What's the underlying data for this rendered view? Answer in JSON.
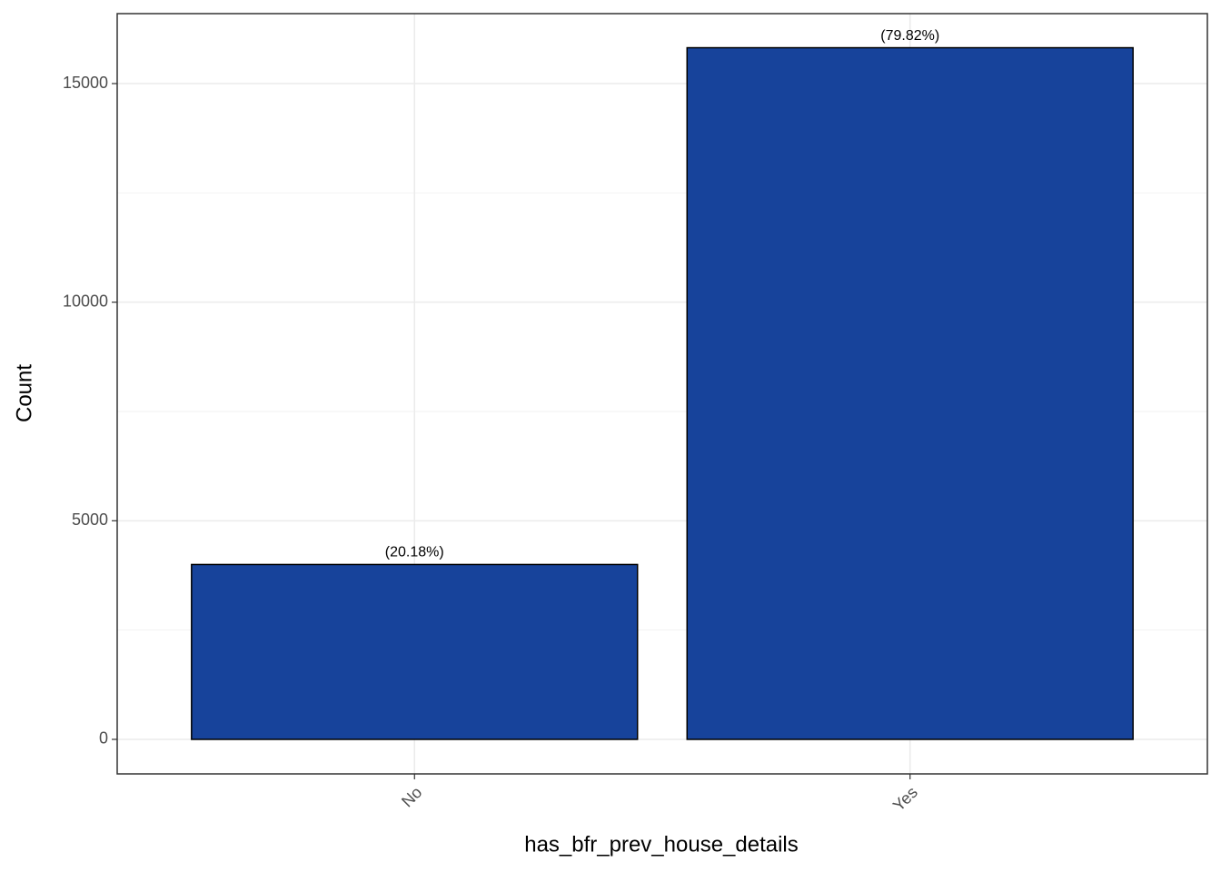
{
  "chart_data": {
    "type": "bar",
    "x_label": "has_bfr_prev_house_details",
    "y_label": "Count",
    "categories": [
      "No",
      "Yes"
    ],
    "values": [
      4000,
      15820
    ],
    "annotations": [
      "(20.18%)",
      "(79.82%)"
    ],
    "color": "#17439b",
    "ylim": [
      -790,
      16600
    ],
    "yticks": [
      0,
      5000,
      10000,
      15000
    ],
    "minor_yticks": [
      2500,
      7500,
      12500
    ],
    "grid": true
  }
}
